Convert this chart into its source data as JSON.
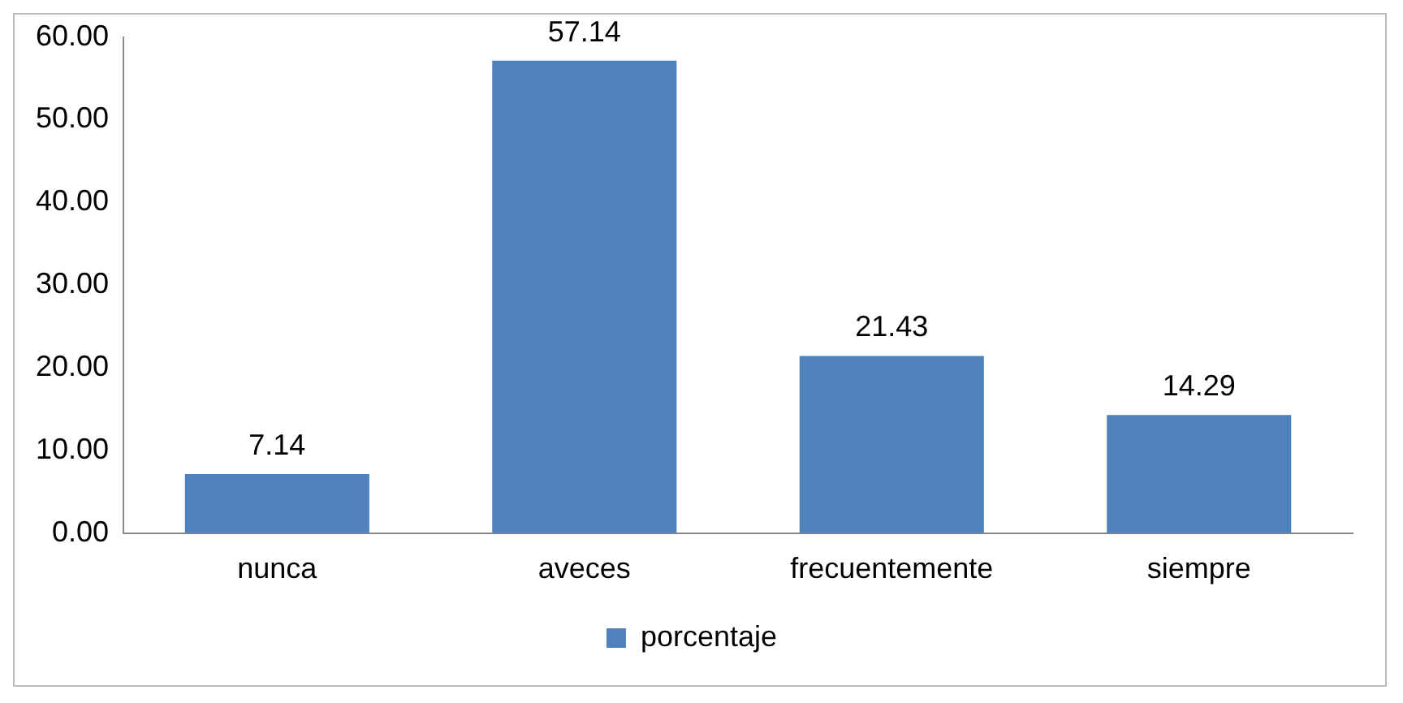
{
  "chart_data": {
    "type": "bar",
    "categories": [
      "nunca",
      "aveces",
      "frecuentemente",
      "siempre"
    ],
    "series": [
      {
        "name": "porcentaje",
        "color": "#4f81bd",
        "values": [
          7.14,
          57.14,
          21.43,
          14.29
        ]
      }
    ],
    "ylim": [
      0,
      60
    ],
    "yticks": [
      {
        "value": 0,
        "label": "0.00"
      },
      {
        "value": 10,
        "label": "10.00"
      },
      {
        "value": 20,
        "label": "20.00"
      },
      {
        "value": 30,
        "label": "30.00"
      },
      {
        "value": 40,
        "label": "40.00"
      },
      {
        "value": 50,
        "label": "50.00"
      },
      {
        "value": 60,
        "label": "60.00"
      }
    ],
    "grid": false,
    "legend": "bottom",
    "data_labels": true
  }
}
